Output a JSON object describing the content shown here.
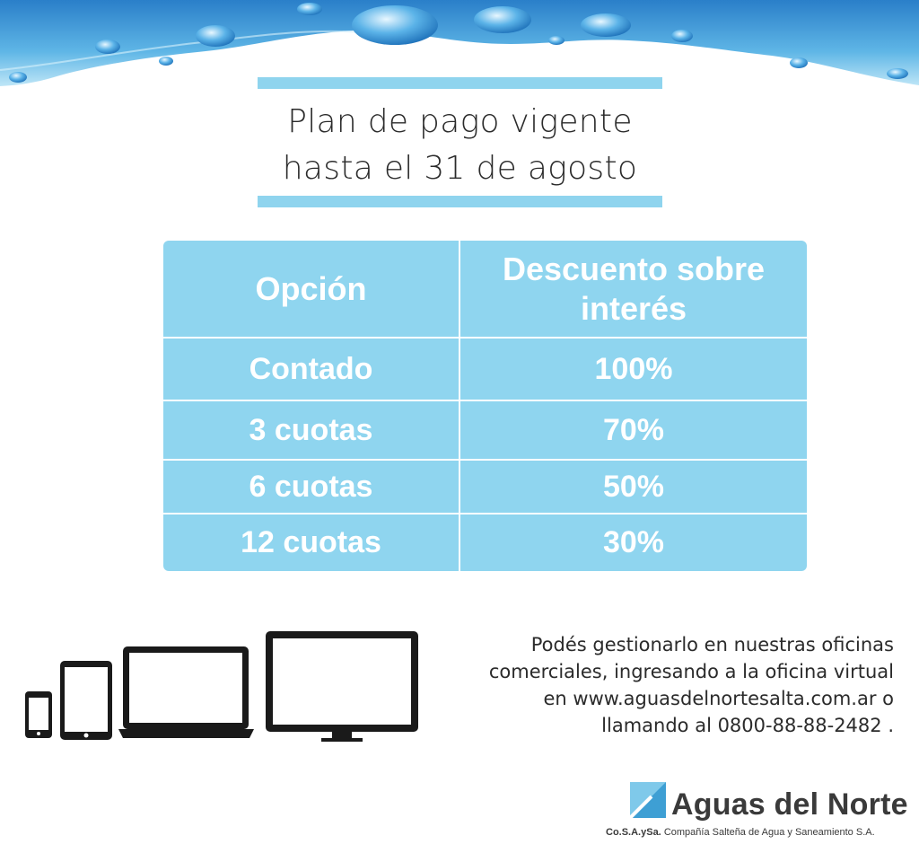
{
  "title": {
    "line1": "Plan de pago vigente",
    "line2": "hasta el 31 de agosto"
  },
  "table": {
    "headers": [
      "Opción",
      "Descuento sobre interés"
    ],
    "rows": [
      {
        "option": "Contado",
        "discount": "100%"
      },
      {
        "option": "3 cuotas",
        "discount": "70%"
      },
      {
        "option": "6 cuotas",
        "discount": "50%"
      },
      {
        "option": "12 cuotas",
        "discount": "30%"
      }
    ]
  },
  "info": {
    "line1": "Podés gestionarlo en nuestras oficinas",
    "line2": "comerciales, ingresando a la oficina virtual",
    "line3": "en www.aguasdelnortesalta.com.ar o",
    "line4": "llamando al 0800-88-88-2482 ."
  },
  "logo": {
    "name": "Aguas del Norte",
    "sub_bold": "Co.S.A.ySa.",
    "sub_text": "Compañía Salteña de Agua y Saneamiento S.A."
  },
  "icons": [
    "water-wave-icon",
    "smartphone-icon",
    "tablet-icon",
    "laptop-icon",
    "monitor-icon",
    "logo-mark-icon"
  ],
  "colors": {
    "table_bg": "#8fd5ef",
    "bar": "#8fd4ee",
    "text": "#2b2b2b",
    "water": "#2f8fd6"
  }
}
